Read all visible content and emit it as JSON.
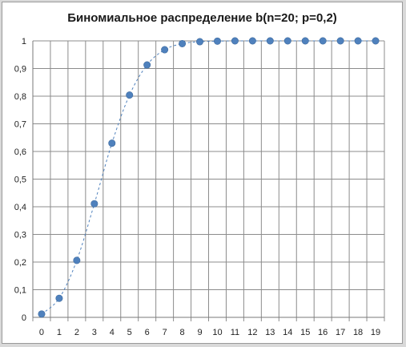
{
  "chart_data": {
    "type": "line",
    "title": "Биномиальное распределение b(n=20; p=0,2)",
    "xlabel": "",
    "ylabel": "",
    "x": [
      0,
      1,
      2,
      3,
      4,
      5,
      6,
      7,
      8,
      9,
      10,
      11,
      12,
      13,
      14,
      15,
      16,
      17,
      18,
      19
    ],
    "series": [
      {
        "values": [
          0.012,
          0.069,
          0.206,
          0.411,
          0.63,
          0.804,
          0.913,
          0.968,
          0.99,
          0.997,
          0.999,
          1.0,
          1.0,
          1.0,
          1.0,
          1.0,
          1.0,
          1.0,
          1.0,
          1.0
        ],
        "color": "#4f81bd",
        "line_style": "dashed",
        "markers": "circle"
      }
    ],
    "ylim": [
      0,
      1
    ],
    "yticks": [
      "0",
      "0,1",
      "0,2",
      "0,3",
      "0,4",
      "0,5",
      "0,6",
      "0,7",
      "0,8",
      "0,9",
      "1"
    ],
    "xticks": [
      "0",
      "1",
      "2",
      "3",
      "4",
      "5",
      "6",
      "7",
      "8",
      "9",
      "10",
      "11",
      "12",
      "13",
      "14",
      "15",
      "16",
      "17",
      "18",
      "19"
    ],
    "grid": true,
    "legend": "none"
  }
}
